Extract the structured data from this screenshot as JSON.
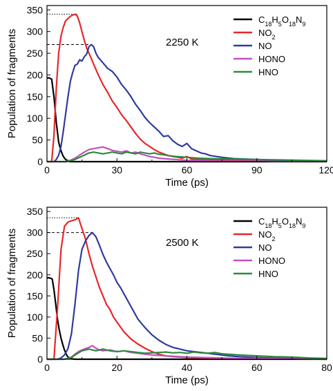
{
  "chart_data": [
    {
      "type": "line",
      "xlabel": "Time (ps)",
      "ylabel": "Population of fragments",
      "xlim": [
        0,
        120
      ],
      "ylim": [
        0,
        360
      ],
      "xticks": [
        0,
        30,
        60,
        90,
        120
      ],
      "yticks": [
        0,
        50,
        100,
        150,
        200,
        250,
        300,
        350
      ],
      "annotation": "2250 K",
      "legend_position": "top-right",
      "dashed_markers": [
        {
          "style": "dotted",
          "y": 340,
          "x_from": 0,
          "x_to": 13
        },
        {
          "style": "dashed",
          "y": 270,
          "x_from": 0,
          "x_to": 19
        }
      ],
      "series": [
        {
          "name": "C18H5O18N9",
          "name_html": "C<tspan baseline-shift=\"sub\" font-size=\"9\">18</tspan>H<tspan baseline-shift=\"sub\" font-size=\"9\">5</tspan>O<tspan baseline-shift=\"sub\" font-size=\"9\">18</tspan>N<tspan baseline-shift=\"sub\" font-size=\"9\">9</tspan>",
          "color": "#000000",
          "x": [
            0,
            1,
            2,
            3,
            4,
            5,
            6,
            7,
            8,
            9,
            10,
            12,
            120
          ],
          "y": [
            193,
            193,
            190,
            150,
            90,
            45,
            25,
            12,
            5,
            2,
            0,
            0,
            0
          ]
        },
        {
          "name": "NO2",
          "name_html": "NO<tspan baseline-shift=\"sub\" font-size=\"9\">2</tspan>",
          "color": "#e8262a",
          "x": [
            0,
            2,
            3,
            4,
            5,
            6,
            7,
            8,
            9,
            10,
            11,
            12,
            13,
            14,
            15,
            16,
            17,
            18,
            19,
            20,
            22,
            24,
            26,
            28,
            30,
            32,
            34,
            36,
            38,
            40,
            42,
            44,
            46,
            48,
            50,
            52,
            54,
            56,
            58,
            60,
            62,
            65,
            70,
            80,
            90,
            100,
            120
          ],
          "y": [
            0,
            0,
            60,
            170,
            250,
            290,
            310,
            325,
            330,
            335,
            338,
            340,
            336,
            320,
            300,
            280,
            262,
            250,
            238,
            225,
            200,
            178,
            160,
            140,
            125,
            108,
            95,
            80,
            65,
            52,
            42,
            35,
            28,
            22,
            18,
            14,
            12,
            10,
            8,
            12,
            6,
            5,
            4,
            3,
            2,
            2,
            1
          ]
        },
        {
          "name": "NO",
          "name_html": "NO",
          "color": "#2e3b9e",
          "x": [
            0,
            3,
            4,
            5,
            6,
            7,
            8,
            9,
            10,
            11,
            12,
            13,
            14,
            15,
            16,
            17,
            18,
            19,
            20,
            21,
            22,
            24,
            26,
            28,
            30,
            32,
            34,
            36,
            38,
            40,
            42,
            44,
            46,
            48,
            50,
            52,
            54,
            56,
            58,
            60,
            62,
            64,
            66,
            68,
            70,
            75,
            80,
            90,
            100,
            110,
            120
          ],
          "y": [
            0,
            0,
            5,
            15,
            35,
            70,
            110,
            150,
            185,
            205,
            222,
            225,
            235,
            232,
            242,
            248,
            265,
            270,
            265,
            250,
            240,
            228,
            215,
            208,
            195,
            178,
            165,
            150,
            132,
            118,
            102,
            90,
            80,
            70,
            58,
            60,
            48,
            40,
            35,
            42,
            30,
            25,
            20,
            18,
            14,
            10,
            7,
            5,
            3,
            2,
            1
          ]
        },
        {
          "name": "HONO",
          "name_html": "HONO",
          "color": "#c14fc2",
          "x": [
            0,
            8,
            10,
            12,
            14,
            16,
            18,
            20,
            22,
            24,
            26,
            28,
            30,
            32,
            34,
            36,
            38,
            40,
            42,
            44,
            46,
            48,
            50,
            55,
            60,
            70,
            80,
            90,
            100,
            120
          ],
          "y": [
            0,
            0,
            3,
            8,
            15,
            22,
            28,
            30,
            32,
            34,
            30,
            26,
            24,
            22,
            25,
            20,
            22,
            18,
            15,
            12,
            10,
            8,
            7,
            5,
            3,
            2,
            1,
            1,
            0,
            0
          ]
        },
        {
          "name": "HNO",
          "name_html": "HNO",
          "color": "#2c8a3c",
          "x": [
            0,
            8,
            10,
            12,
            14,
            16,
            18,
            20,
            22,
            24,
            26,
            28,
            30,
            32,
            34,
            36,
            38,
            40,
            42,
            44,
            46,
            48,
            50,
            52,
            55,
            60,
            65,
            70,
            80,
            90,
            100,
            110,
            120
          ],
          "y": [
            0,
            0,
            2,
            5,
            10,
            15,
            20,
            22,
            20,
            18,
            20,
            22,
            20,
            18,
            22,
            20,
            18,
            22,
            20,
            18,
            20,
            17,
            16,
            14,
            12,
            10,
            8,
            7,
            6,
            5,
            4,
            3,
            2
          ]
        }
      ]
    },
    {
      "type": "line",
      "xlabel": "Time (ps)",
      "ylabel": "Population of fragments",
      "xlim": [
        0,
        80
      ],
      "ylim": [
        0,
        360
      ],
      "xticks": [
        0,
        20,
        40,
        60,
        80
      ],
      "yticks": [
        0,
        50,
        100,
        150,
        200,
        250,
        300,
        350
      ],
      "annotation": "2500 K",
      "legend_position": "top-right",
      "dashed_markers": [
        {
          "style": "dotted",
          "y": 335,
          "x_from": 0,
          "x_to": 9
        },
        {
          "style": "dashed",
          "y": 300,
          "x_from": 0,
          "x_to": 13
        }
      ],
      "series": [
        {
          "name": "C18H5O18N9",
          "name_html": "C<tspan baseline-shift=\"sub\" font-size=\"9\">18</tspan>H<tspan baseline-shift=\"sub\" font-size=\"9\">5</tspan>O<tspan baseline-shift=\"sub\" font-size=\"9\">18</tspan>N<tspan baseline-shift=\"sub\" font-size=\"9\">9</tspan>",
          "color": "#000000",
          "x": [
            0,
            0.5,
            1,
            1.5,
            2,
            2.5,
            3,
            3.5,
            4,
            4.5,
            5,
            5.5,
            6,
            7,
            8,
            80
          ],
          "y": [
            193,
            193,
            192,
            190,
            165,
            130,
            95,
            70,
            50,
            35,
            22,
            12,
            5,
            1,
            0,
            0
          ]
        },
        {
          "name": "NO2",
          "name_html": "NO<tspan baseline-shift=\"sub\" font-size=\"9\">2</tspan>",
          "color": "#e8262a",
          "x": [
            0,
            2,
            3,
            4,
            5,
            6,
            7,
            8,
            9,
            10,
            11,
            12,
            13,
            14,
            15,
            16,
            17,
            18,
            19,
            20,
            22,
            24,
            26,
            28,
            30,
            32,
            34,
            36,
            38,
            40,
            45,
            50,
            60,
            70,
            80
          ],
          "y": [
            0,
            0,
            120,
            260,
            315,
            325,
            328,
            330,
            335,
            310,
            285,
            250,
            220,
            195,
            170,
            150,
            130,
            118,
            100,
            88,
            65,
            48,
            36,
            26,
            18,
            12,
            8,
            6,
            5,
            4,
            3,
            2,
            1,
            1,
            0
          ]
        },
        {
          "name": "NO",
          "name_html": "NO",
          "color": "#2e3b9e",
          "x": [
            0,
            3,
            4,
            5,
            6,
            7,
            8,
            9,
            10,
            11,
            12,
            13,
            14,
            15,
            16,
            17,
            18,
            19,
            20,
            21,
            22,
            23,
            24,
            25,
            26,
            28,
            30,
            32,
            34,
            36,
            38,
            40,
            42,
            44,
            46,
            48,
            50,
            52,
            55,
            60,
            65,
            70,
            75,
            80
          ],
          "y": [
            0,
            0,
            3,
            10,
            25,
            60,
            130,
            210,
            260,
            280,
            293,
            300,
            290,
            270,
            248,
            230,
            215,
            200,
            182,
            170,
            155,
            140,
            125,
            110,
            95,
            75,
            58,
            45,
            35,
            28,
            24,
            20,
            18,
            16,
            14,
            12,
            10,
            8,
            6,
            4,
            3,
            2,
            1,
            0
          ]
        },
        {
          "name": "HONO",
          "name_html": "HONO",
          "color": "#c14fc2",
          "x": [
            0,
            5,
            7,
            8,
            9,
            10,
            11,
            12,
            13,
            14,
            15,
            16,
            18,
            20,
            22,
            24,
            26,
            28,
            30,
            32,
            34,
            36,
            38,
            40,
            45,
            50,
            55,
            60,
            70,
            80
          ],
          "y": [
            0,
            0,
            5,
            12,
            18,
            22,
            25,
            28,
            32,
            26,
            22,
            20,
            22,
            18,
            20,
            16,
            14,
            12,
            10,
            9,
            8,
            7,
            6,
            5,
            4,
            3,
            2,
            2,
            1,
            0
          ]
        },
        {
          "name": "HNO",
          "name_html": "HNO",
          "color": "#2c8a3c",
          "x": [
            0,
            5,
            7,
            8,
            9,
            10,
            11,
            12,
            13,
            14,
            15,
            16,
            18,
            20,
            22,
            24,
            26,
            28,
            30,
            32,
            34,
            36,
            38,
            40,
            42,
            44,
            46,
            48,
            50,
            55,
            60,
            65,
            70,
            75,
            80
          ],
          "y": [
            0,
            0,
            4,
            10,
            15,
            20,
            22,
            24,
            22,
            20,
            22,
            24,
            20,
            18,
            20,
            18,
            16,
            14,
            15,
            16,
            17,
            15,
            16,
            14,
            17,
            15,
            14,
            16,
            13,
            10,
            8,
            6,
            5,
            3,
            2
          ]
        }
      ]
    }
  ]
}
